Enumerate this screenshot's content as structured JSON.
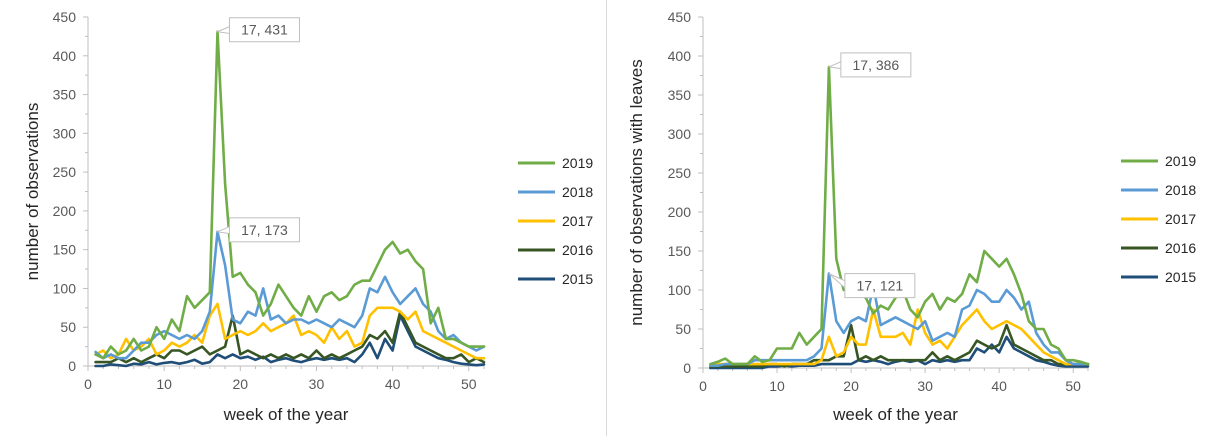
{
  "chart_data": [
    {
      "type": "line",
      "title": "",
      "xlabel": "week of the year",
      "ylabel": "number of observations",
      "xlim": [
        0,
        52
      ],
      "ylim": [
        0,
        450
      ],
      "xticks": [
        0,
        10,
        20,
        30,
        40,
        50
      ],
      "yticks": [
        0,
        50,
        100,
        150,
        200,
        250,
        300,
        350,
        400,
        450
      ],
      "legend": "right",
      "grid": false,
      "x": [
        1,
        2,
        3,
        4,
        5,
        6,
        7,
        8,
        9,
        10,
        11,
        12,
        13,
        14,
        15,
        16,
        17,
        18,
        19,
        20,
        21,
        22,
        23,
        24,
        25,
        26,
        27,
        28,
        29,
        30,
        31,
        32,
        33,
        34,
        35,
        36,
        37,
        38,
        39,
        40,
        41,
        42,
        43,
        44,
        45,
        46,
        47,
        48,
        49,
        50,
        51,
        52
      ],
      "series": [
        {
          "name": "2019",
          "color": "#70ad47",
          "values": [
            15,
            10,
            25,
            15,
            20,
            35,
            20,
            25,
            50,
            35,
            60,
            45,
            90,
            75,
            85,
            95,
            431,
            235,
            115,
            120,
            105,
            95,
            65,
            80,
            105,
            90,
            75,
            65,
            90,
            70,
            90,
            95,
            85,
            90,
            105,
            110,
            110,
            130,
            150,
            160,
            145,
            150,
            135,
            125,
            55,
            75,
            35,
            35,
            30,
            25,
            25,
            25
          ]
        },
        {
          "name": "2018",
          "color": "#5b9bd5",
          "values": [
            18,
            10,
            15,
            10,
            10,
            20,
            30,
            30,
            40,
            45,
            40,
            35,
            40,
            35,
            45,
            70,
            173,
            130,
            60,
            55,
            70,
            65,
            100,
            60,
            65,
            55,
            60,
            60,
            55,
            60,
            55,
            50,
            60,
            55,
            50,
            65,
            100,
            95,
            115,
            95,
            80,
            90,
            100,
            80,
            70,
            45,
            35,
            40,
            30,
            25,
            20,
            25
          ]
        },
        {
          "name": "2017",
          "color": "#ffc000",
          "values": [
            15,
            20,
            10,
            15,
            35,
            20,
            25,
            35,
            15,
            20,
            30,
            25,
            30,
            40,
            30,
            65,
            80,
            35,
            40,
            45,
            40,
            45,
            55,
            45,
            50,
            55,
            65,
            40,
            45,
            40,
            30,
            50,
            35,
            45,
            25,
            30,
            65,
            75,
            75,
            75,
            70,
            60,
            70,
            45,
            40,
            35,
            30,
            25,
            20,
            15,
            10,
            10
          ]
        },
        {
          "name": "2016",
          "color": "#375623",
          "values": [
            5,
            5,
            5,
            10,
            5,
            10,
            5,
            10,
            15,
            10,
            20,
            20,
            15,
            20,
            25,
            15,
            20,
            25,
            65,
            15,
            20,
            15,
            10,
            15,
            10,
            15,
            10,
            15,
            10,
            20,
            10,
            15,
            10,
            15,
            20,
            25,
            40,
            35,
            45,
            30,
            70,
            50,
            30,
            25,
            20,
            15,
            10,
            10,
            15,
            5,
            10,
            5
          ]
        },
        {
          "name": "2015",
          "color": "#1f4e79",
          "values": [
            0,
            0,
            2,
            1,
            0,
            3,
            2,
            5,
            2,
            4,
            5,
            3,
            5,
            8,
            3,
            5,
            15,
            10,
            15,
            10,
            12,
            8,
            12,
            5,
            8,
            10,
            7,
            5,
            8,
            10,
            8,
            10,
            8,
            10,
            5,
            15,
            30,
            10,
            35,
            20,
            65,
            45,
            25,
            20,
            15,
            10,
            8,
            5,
            3,
            2,
            1,
            2
          ]
        }
      ],
      "annotations": [
        {
          "label": "17, 431",
          "x": 17,
          "y": 431
        },
        {
          "label": "17, 173",
          "x": 17,
          "y": 173
        }
      ]
    },
    {
      "type": "line",
      "title": "",
      "xlabel": "week of the year",
      "ylabel": "number of observations with leaves",
      "xlim": [
        0,
        52
      ],
      "ylim": [
        0,
        450
      ],
      "xticks": [
        0,
        10,
        20,
        30,
        40,
        50
      ],
      "yticks": [
        0,
        50,
        100,
        150,
        200,
        250,
        300,
        350,
        400,
        450
      ],
      "legend": "right",
      "grid": false,
      "x": [
        1,
        2,
        3,
        4,
        5,
        6,
        7,
        8,
        9,
        10,
        11,
        12,
        13,
        14,
        15,
        16,
        17,
        18,
        19,
        20,
        21,
        22,
        23,
        24,
        25,
        26,
        27,
        28,
        29,
        30,
        31,
        32,
        33,
        34,
        35,
        36,
        37,
        38,
        39,
        40,
        41,
        42,
        43,
        44,
        45,
        46,
        47,
        48,
        49,
        50,
        51,
        52
      ],
      "series": [
        {
          "name": "2019",
          "color": "#70ad47",
          "values": [
            5,
            8,
            12,
            5,
            5,
            5,
            15,
            8,
            10,
            25,
            25,
            25,
            45,
            30,
            40,
            50,
            386,
            140,
            100,
            105,
            95,
            90,
            70,
            80,
            75,
            90,
            100,
            75,
            65,
            85,
            95,
            75,
            90,
            85,
            95,
            120,
            110,
            150,
            140,
            130,
            140,
            120,
            95,
            60,
            50,
            50,
            30,
            25,
            10,
            10,
            8,
            5
          ]
        },
        {
          "name": "2018",
          "color": "#5b9bd5",
          "values": [
            3,
            3,
            5,
            5,
            5,
            5,
            10,
            10,
            10,
            10,
            10,
            10,
            10,
            10,
            15,
            25,
            121,
            60,
            45,
            60,
            65,
            60,
            105,
            55,
            60,
            65,
            60,
            55,
            50,
            60,
            35,
            40,
            45,
            40,
            75,
            80,
            100,
            95,
            85,
            85,
            100,
            90,
            75,
            85,
            45,
            30,
            20,
            20,
            10,
            5,
            5,
            5
          ]
        },
        {
          "name": "2017",
          "color": "#ffc000",
          "values": [
            3,
            5,
            5,
            5,
            5,
            5,
            5,
            5,
            5,
            5,
            5,
            5,
            5,
            5,
            5,
            10,
            40,
            15,
            20,
            40,
            30,
            30,
            75,
            40,
            40,
            40,
            45,
            30,
            75,
            45,
            30,
            35,
            25,
            40,
            55,
            65,
            75,
            60,
            50,
            55,
            60,
            55,
            50,
            40,
            30,
            20,
            15,
            10,
            5,
            5,
            5,
            5
          ]
        },
        {
          "name": "2016",
          "color": "#375623",
          "values": [
            2,
            2,
            2,
            2,
            2,
            2,
            2,
            2,
            5,
            5,
            2,
            5,
            5,
            5,
            10,
            10,
            10,
            15,
            15,
            55,
            10,
            15,
            10,
            15,
            10,
            10,
            10,
            10,
            10,
            10,
            20,
            10,
            15,
            10,
            15,
            20,
            35,
            30,
            25,
            30,
            55,
            30,
            25,
            20,
            15,
            10,
            10,
            5,
            5,
            5,
            5,
            5
          ]
        },
        {
          "name": "2015",
          "color": "#1f4e79",
          "values": [
            0,
            0,
            0,
            0,
            0,
            0,
            0,
            0,
            2,
            2,
            3,
            2,
            3,
            3,
            3,
            5,
            5,
            5,
            5,
            5,
            10,
            8,
            10,
            8,
            5,
            8,
            10,
            8,
            10,
            5,
            10,
            8,
            10,
            8,
            10,
            10,
            25,
            20,
            30,
            20,
            40,
            25,
            20,
            15,
            10,
            8,
            5,
            3,
            2,
            2,
            2,
            2
          ]
        }
      ],
      "annotations": [
        {
          "label": "17, 386",
          "x": 17,
          "y": 386
        },
        {
          "label": "17, 121",
          "x": 17,
          "y": 121
        }
      ]
    }
  ]
}
